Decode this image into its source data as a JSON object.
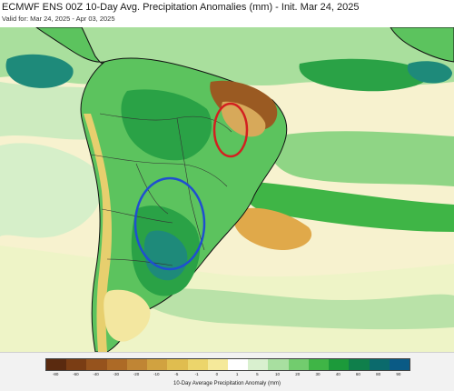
{
  "header": {
    "title": "ECMWF ENS 00Z 10-Day Avg. Precipitation Anomalies (mm) - Init. Mar 24, 2025",
    "subtitle": "Valid for: Mar 24, 2025 - Apr 03, 2025"
  },
  "colorbar": {
    "label": "10-Day Average Precipitation Anomaly (mm)",
    "ticks": [
      "-80",
      "-60",
      "-40",
      "-30",
      "-20",
      "-10",
      "-5",
      "-1",
      "0",
      "1",
      "5",
      "10",
      "20",
      "30",
      "40",
      "60",
      "80",
      "90"
    ],
    "colors": [
      "#5a2a0f",
      "#7a3d14",
      "#96531d",
      "#ad6a26",
      "#c08534",
      "#d1a240",
      "#e0bd4f",
      "#ecd56b",
      "#f5e99a",
      "#ffffff",
      "#d9f0cf",
      "#a8dfa0",
      "#72cc6e",
      "#3fb546",
      "#1c9a3a",
      "#0f7f4b",
      "#0b6a6c",
      "#0a5a85"
    ]
  },
  "map": {
    "palette": {
      "ocean_light": "#d5efcc",
      "ocean_pale": "#fbf6d8",
      "light_green": "#a9df9d",
      "green": "#5cc35e",
      "dark_green": "#2aa246",
      "teal": "#1e8a7a",
      "pale_yellow": "#f3e7a0",
      "yellow": "#e7cf6e",
      "tan": "#d7a95a",
      "brown": "#9a5a22",
      "coast": "#111111",
      "borders": "#333333"
    },
    "annotations": [
      {
        "name": "red-ellipse",
        "color": "#d32020"
      },
      {
        "name": "blue-ellipse",
        "color": "#1f4fd0"
      }
    ]
  }
}
